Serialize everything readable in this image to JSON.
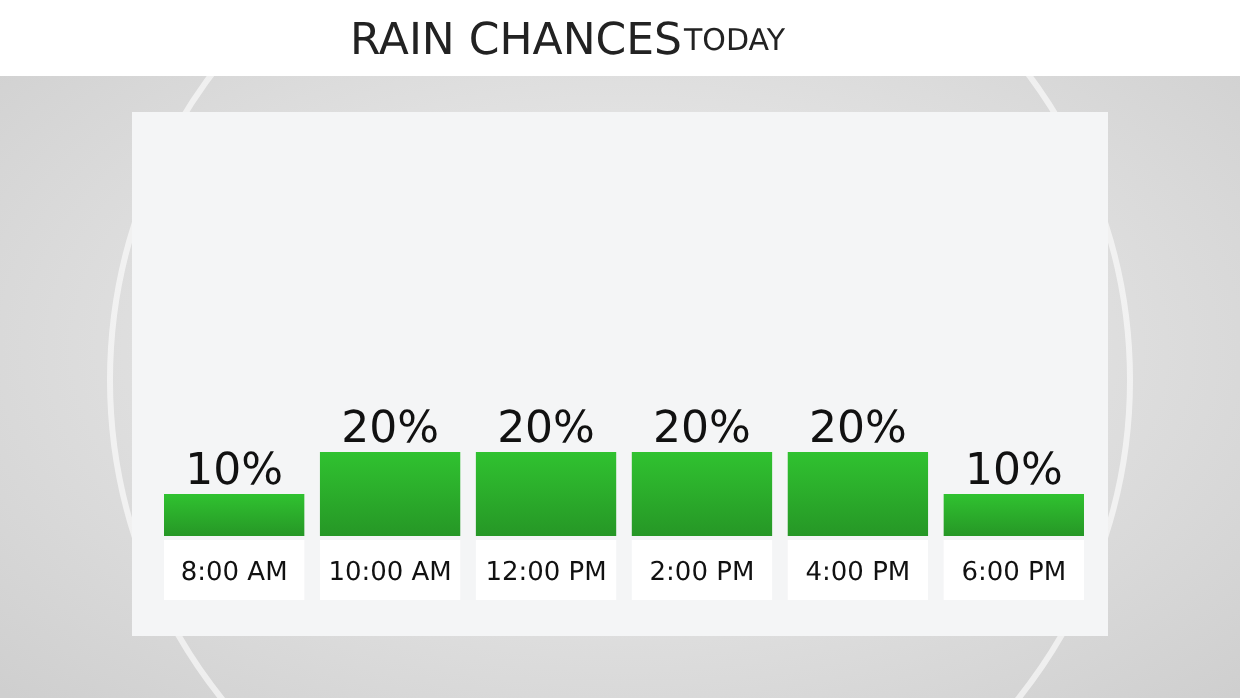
{
  "chart_data": {
    "type": "bar",
    "title": "RAIN CHANCES",
    "subtitle": "TODAY",
    "categories": [
      "8:00 AM",
      "10:00 AM",
      "12:00 PM",
      "2:00 PM",
      "4:00 PM",
      "6:00 PM"
    ],
    "values": [
      10,
      20,
      20,
      20,
      20,
      10
    ],
    "value_labels": [
      "10%",
      "20%",
      "20%",
      "20%",
      "20%",
      "10%"
    ],
    "color": "#2aa82a"
  }
}
